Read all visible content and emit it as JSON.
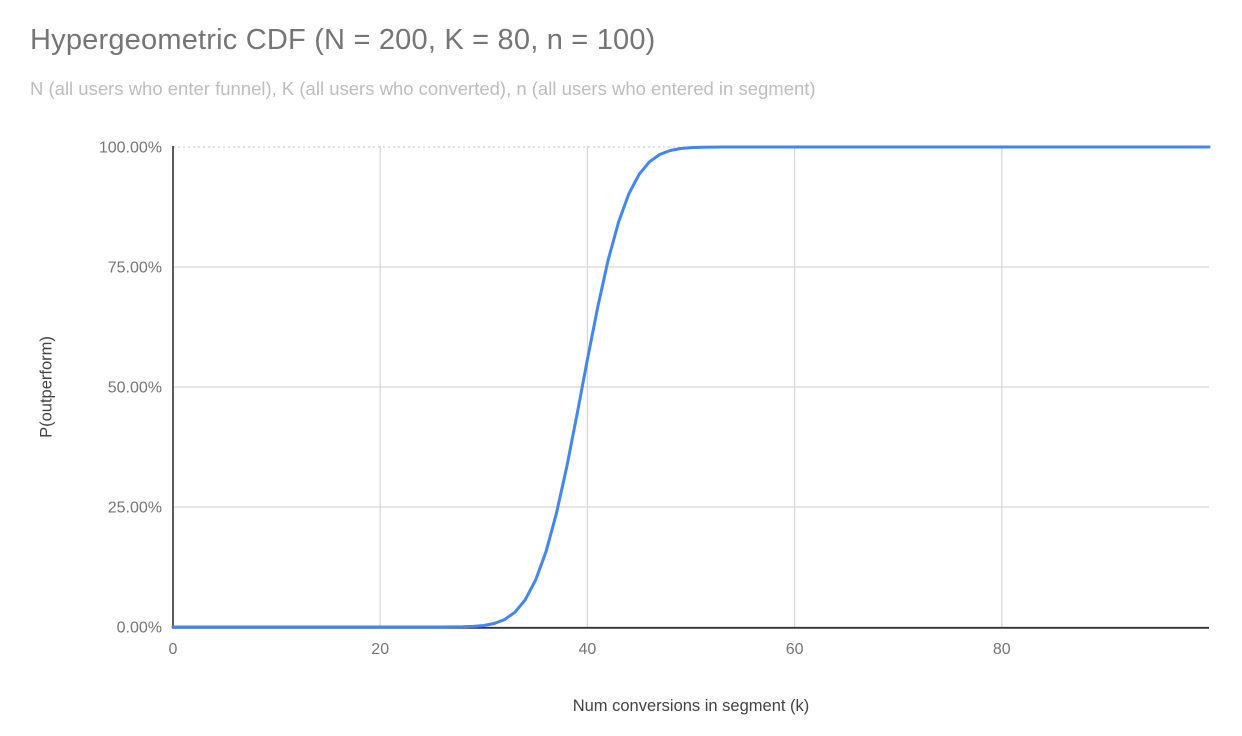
{
  "colors": {
    "background": "#ffffff",
    "title": "#757575",
    "subtitle": "#bdbdbd",
    "tick_label": "#757575",
    "axis_title": "#424242",
    "gridline": "#d6d6d6",
    "top_gridline": "#cfcfcf",
    "axis_line": "#333333",
    "series_line": "#4285f4"
  },
  "chart_data": {
    "type": "line",
    "title": "Hypergeometric CDF (N = 200, K = 80, n = 100)",
    "subtitle": "N (all users who enter funnel), K (all users who converted), n (all users who entered in segment)",
    "params": {
      "N": 200,
      "K": 80,
      "n": 100
    },
    "xlabel": "Num conversions in segment (k)",
    "ylabel": "P(outperform)",
    "xlim": [
      0,
      100
    ],
    "ylim": [
      0,
      1
    ],
    "grid": true,
    "legend": "none",
    "x_ticks": [
      {
        "value": 0,
        "label": "0"
      },
      {
        "value": 20,
        "label": "20"
      },
      {
        "value": 40,
        "label": "40"
      },
      {
        "value": 60,
        "label": "60"
      },
      {
        "value": 80,
        "label": "80"
      }
    ],
    "y_ticks": [
      {
        "value": 0.0,
        "label": "0.00%"
      },
      {
        "value": 0.25,
        "label": "25.00%"
      },
      {
        "value": 0.5,
        "label": "50.00%"
      },
      {
        "value": 0.75,
        "label": "75.00%"
      },
      {
        "value": 1.0,
        "label": "100.00%"
      }
    ],
    "series": [
      {
        "color": "#4285f4",
        "points": [
          [
            0,
            0
          ],
          [
            5,
            0
          ],
          [
            10,
            0
          ],
          [
            15,
            0
          ],
          [
            20,
            0
          ],
          [
            24,
            0
          ],
          [
            25,
            1e-05
          ],
          [
            26,
            5e-05
          ],
          [
            27,
            0.00016
          ],
          [
            28,
            0.00046
          ],
          [
            29,
            0.00125
          ],
          [
            30,
            0.0031
          ],
          [
            31,
            0.0072
          ],
          [
            32,
            0.0154
          ],
          [
            33,
            0.0307
          ],
          [
            34,
            0.0567
          ],
          [
            35,
            0.0977
          ],
          [
            36,
            0.1568
          ],
          [
            37,
            0.2358
          ],
          [
            38,
            0.3329
          ],
          [
            39,
            0.4428
          ],
          [
            40,
            0.5572
          ],
          [
            41,
            0.6671
          ],
          [
            42,
            0.7642
          ],
          [
            43,
            0.8432
          ],
          [
            44,
            0.9023
          ],
          [
            45,
            0.9433
          ],
          [
            46,
            0.9693
          ],
          [
            47,
            0.9846
          ],
          [
            48,
            0.9928
          ],
          [
            49,
            0.9969
          ],
          [
            50,
            0.9988
          ],
          [
            51,
            0.9995
          ],
          [
            52,
            0.9998
          ],
          [
            53,
            0.99995
          ],
          [
            54,
            0.99999
          ],
          [
            55,
            1
          ],
          [
            60,
            1
          ],
          [
            70,
            1
          ],
          [
            80,
            1
          ],
          [
            90,
            1
          ],
          [
            100,
            1
          ]
        ]
      }
    ]
  }
}
